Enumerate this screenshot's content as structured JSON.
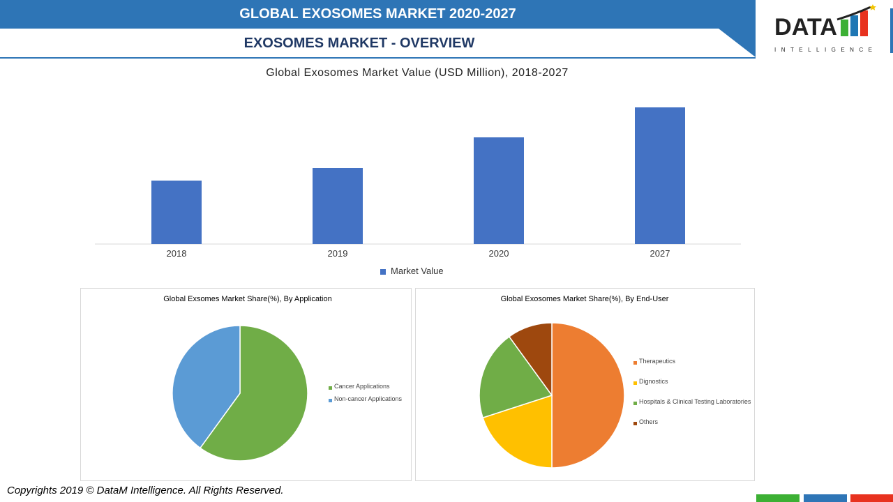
{
  "header": {
    "title": "GLOBAL EXOSOMES MARKET 2020-2027",
    "subtitle": "EXOSOMES MARKET - OVERVIEW"
  },
  "logo": {
    "text": "DATA",
    "subtext": "INTELLIGENCE",
    "colors": [
      "#3cb034",
      "#1f77b4",
      "#e8321f"
    ]
  },
  "footer": {
    "copyright": "Copyrights 2019 © DataM Intelligence. All Rights Reserved."
  },
  "chart_data": [
    {
      "type": "bar",
      "title": "Global Exosomes Market Value (USD Million), 2018-2027",
      "categories": [
        "2018",
        "2019",
        "2020",
        "2027"
      ],
      "values": [
        91,
        109,
        153,
        196
      ],
      "values_note": "relative, no axis printed",
      "series": [
        {
          "name": "Market Value",
          "color": "#4472c4"
        }
      ],
      "legend": "bottom",
      "grid": false
    },
    {
      "type": "pie",
      "title": "Global Exsomes Market Share(%), By Application",
      "labels": [
        "Cancer Applications",
        "Non-cancer Applications"
      ],
      "values": [
        60,
        40
      ],
      "colors": [
        "#70ad47",
        "#5b9bd5"
      ],
      "legend": "right"
    },
    {
      "type": "pie",
      "title": "Global Exosomes Market Share(%), By End-User",
      "labels": [
        "Therapeutics",
        "Dignostics",
        "Hospitals & Clinical Testing Laboratories",
        "Others"
      ],
      "values": [
        50,
        20,
        20,
        10
      ],
      "colors": [
        "#ed7d31",
        "#ffc000",
        "#70ad47",
        "#9e480e"
      ],
      "legend": "right"
    }
  ]
}
